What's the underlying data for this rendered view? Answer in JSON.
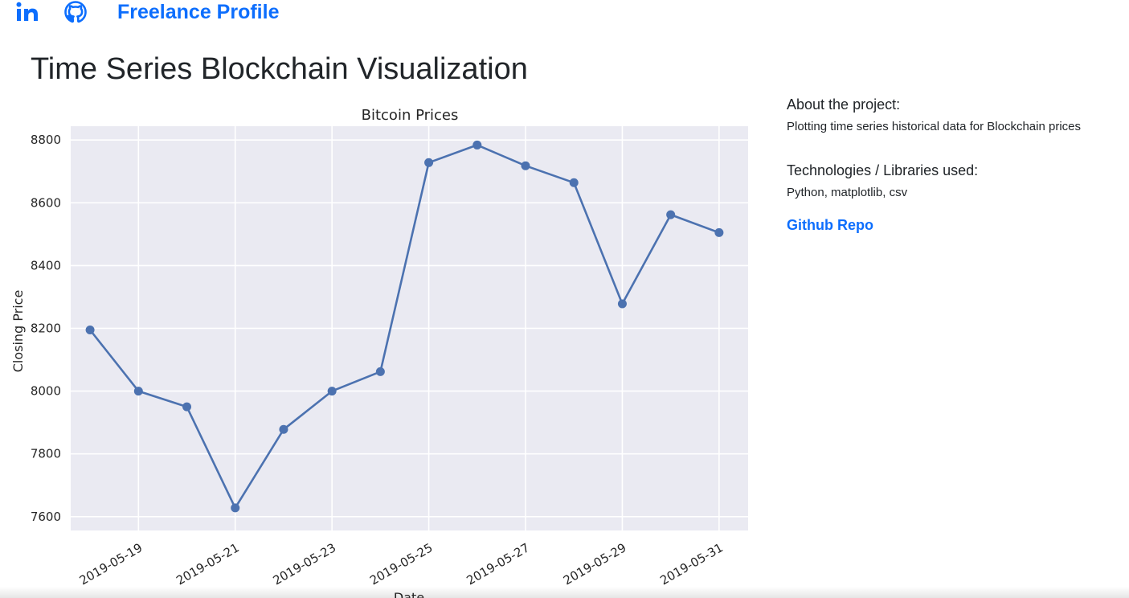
{
  "nav": {
    "linkedin_icon": "linkedin-icon",
    "github_icon": "github-icon",
    "freelance_label": "Freelance Profile",
    "link_color": "#0d6efd"
  },
  "page": {
    "title": "Time Series Blockchain Visualization"
  },
  "sidebar": {
    "about_heading": "About the project:",
    "about_text": "Plotting time series historical data for Blockchain prices",
    "tech_heading": "Technologies / Libraries used:",
    "tech_text": "Python, matplotlib, csv",
    "repo_label": "Github Repo"
  },
  "chart_data": {
    "type": "line",
    "title": "Bitcoin Prices",
    "xlabel": "Date",
    "ylabel": "Closing Price",
    "x": [
      "2019-05-18",
      "2019-05-19",
      "2019-05-20",
      "2019-05-21",
      "2019-05-22",
      "2019-05-23",
      "2019-05-24",
      "2019-05-25",
      "2019-05-26",
      "2019-05-27",
      "2019-05-28",
      "2019-05-29",
      "2019-05-30",
      "2019-05-31"
    ],
    "series": [
      {
        "values": [
          8195,
          8000,
          7950,
          7628,
          7878,
          8000,
          8062,
          8728,
          8784,
          8718,
          8664,
          8278,
          8562,
          8505
        ],
        "color": "#4c72b0",
        "marker": "circle"
      }
    ],
    "xticks": [
      "2019-05-19",
      "2019-05-21",
      "2019-05-23",
      "2019-05-25",
      "2019-05-27",
      "2019-05-29",
      "2019-05-31"
    ],
    "yticks": [
      7600,
      7800,
      8000,
      8200,
      8400,
      8600,
      8800
    ],
    "ylim": [
      7556,
      8844
    ],
    "xlim": [
      "2019-05-17.6",
      "2019-05-31.6"
    ],
    "grid": true,
    "style": "seaborn-darkgrid",
    "background_color": "#eaeaf2"
  }
}
